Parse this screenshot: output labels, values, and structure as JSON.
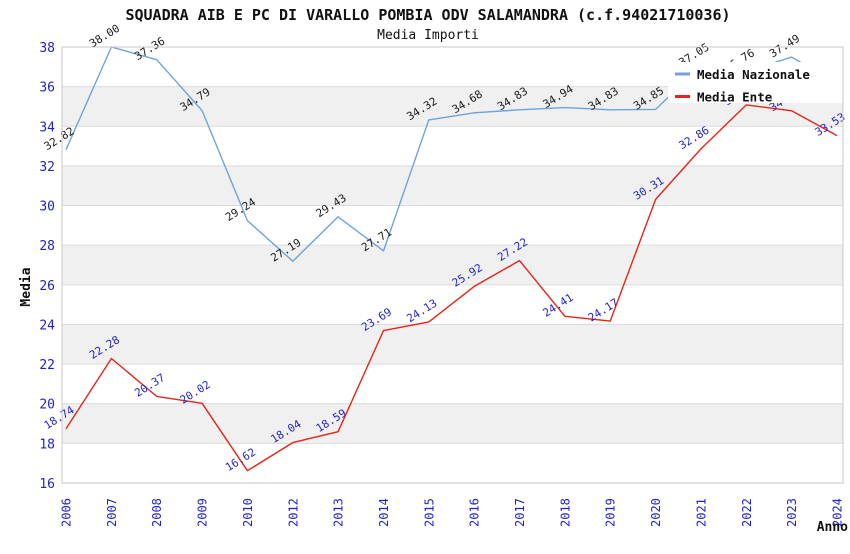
{
  "chart_data": {
    "type": "line",
    "title": "SQUADRA AIB E PC DI VARALLO POMBIA ODV SALAMANDRA (c.f.94021710036)",
    "subtitle": "Media Importi",
    "xlabel": "Anno",
    "ylabel": "Media",
    "categories": [
      "2006",
      "2007",
      "2008",
      "2009",
      "2010",
      "2012",
      "2013",
      "2014",
      "2015",
      "2016",
      "2017",
      "2018",
      "2019",
      "2020",
      "2021",
      "2022",
      "2023",
      "2024"
    ],
    "series": [
      {
        "name": "Media Nazionale",
        "color": "#6FA3DC",
        "label_color": "#1A1A1A",
        "values": [
          32.82,
          38.0,
          37.36,
          34.79,
          29.24,
          27.19,
          29.43,
          27.71,
          34.32,
          34.68,
          34.83,
          34.94,
          34.83,
          34.85,
          37.05,
          36.76,
          37.49,
          36.16
        ],
        "hidden_label_indexes": [
          17
        ]
      },
      {
        "name": "Media Ente",
        "color": "#E82418",
        "label_color": "#2323CC",
        "values": [
          18.74,
          22.28,
          20.37,
          20.02,
          16.62,
          18.04,
          18.59,
          23.69,
          24.13,
          25.92,
          27.22,
          24.41,
          24.17,
          30.31,
          32.86,
          35.08,
          34.78,
          33.53
        ],
        "hidden_label_indexes": []
      }
    ],
    "y_ticks": [
      38,
      36,
      34,
      32,
      30,
      28,
      26,
      24,
      22,
      20,
      18,
      16
    ],
    "ylim": [
      16,
      38
    ],
    "legend_position": "top-right",
    "grid": "horizontal-bands",
    "colors": {
      "band": "#F0F0F0",
      "gridline": "#DCDCDC",
      "plot_border": "#C8C8C8",
      "tick_label": "#2121CE",
      "legend_background": "#FFFFFF"
    }
  }
}
